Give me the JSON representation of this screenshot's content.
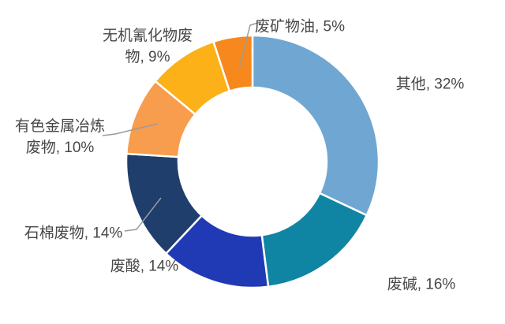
{
  "chart_data": {
    "type": "pie",
    "variant": "donut",
    "title": "",
    "categories": [
      "其他",
      "废碱",
      "废酸",
      "石棉废物",
      "有色金属冶炼废物",
      "无机氰化物废物",
      "废矿物油"
    ],
    "values": [
      32,
      16,
      14,
      14,
      10,
      9,
      5
    ],
    "unit": "%",
    "colors": [
      "#6FA7D2",
      "#0F85A3",
      "#2039B5",
      "#1F3E6B",
      "#F89C4D",
      "#FBB117",
      "#F6881E"
    ],
    "start_angle_deg": 0,
    "direction": "clockwise",
    "donut_hole_ratio": 0.59,
    "legend_position": "none",
    "background": "#FFFFFF",
    "label_color": "#474747",
    "leader_line_color": "#9B9B9B",
    "label_display": [
      [
        "其他, 32%"
      ],
      [
        "废碱, 16%"
      ],
      [
        "废酸, 14%"
      ],
      [
        "石棉废物, 14%"
      ],
      [
        "有色金属冶炼",
        "废物, 10%"
      ],
      [
        "无机氰化物废",
        "物, 9%"
      ],
      [
        "废矿物油, 5%"
      ]
    ]
  }
}
